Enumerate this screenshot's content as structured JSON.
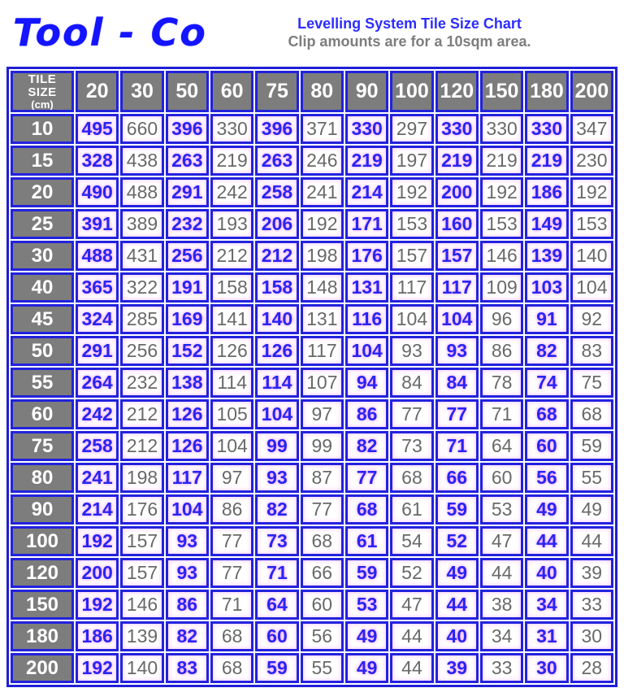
{
  "logo_text": "Tool - Co",
  "header": {
    "title": "Levelling System Tile Size Chart",
    "subtitle": "Clip amounts are for a 10sqm area."
  },
  "colors": {
    "accent_blue": "#2626f2",
    "grid_blue": "#2222dd",
    "value_gray": "#696969",
    "header_gray": "#7d7d7d",
    "halo_pink": "#ff6eff"
  },
  "chart_data": {
    "type": "table",
    "title": "Levelling System Tile Size Chart",
    "subtitle": "Clip amounts are for a 10sqm area.",
    "corner_label_line1": "TILE SIZE",
    "corner_label_line2": "(cm)",
    "columns": [
      {
        "label": "20",
        "highlight": true
      },
      {
        "label": "30",
        "highlight": false
      },
      {
        "label": "50",
        "highlight": true
      },
      {
        "label": "60",
        "highlight": false
      },
      {
        "label": "75",
        "highlight": true
      },
      {
        "label": "80",
        "highlight": false
      },
      {
        "label": "90",
        "highlight": true
      },
      {
        "label": "100",
        "highlight": false
      },
      {
        "label": "120",
        "highlight": true
      },
      {
        "label": "150",
        "highlight": false
      },
      {
        "label": "180",
        "highlight": true
      },
      {
        "label": "200",
        "highlight": false
      }
    ],
    "rows": [
      {
        "label": "10",
        "values": [
          495,
          660,
          396,
          330,
          396,
          371,
          330,
          297,
          330,
          330,
          330,
          347
        ]
      },
      {
        "label": "15",
        "values": [
          328,
          438,
          263,
          219,
          263,
          246,
          219,
          197,
          219,
          219,
          219,
          230
        ]
      },
      {
        "label": "20",
        "values": [
          490,
          488,
          291,
          242,
          258,
          241,
          214,
          192,
          200,
          192,
          186,
          192
        ]
      },
      {
        "label": "25",
        "values": [
          391,
          389,
          232,
          193,
          206,
          192,
          171,
          153,
          160,
          153,
          149,
          153
        ]
      },
      {
        "label": "30",
        "values": [
          488,
          431,
          256,
          212,
          212,
          198,
          176,
          157,
          157,
          146,
          139,
          140
        ]
      },
      {
        "label": "40",
        "values": [
          365,
          322,
          191,
          158,
          158,
          148,
          131,
          117,
          117,
          109,
          103,
          104
        ]
      },
      {
        "label": "45",
        "values": [
          324,
          285,
          169,
          141,
          140,
          131,
          116,
          104,
          104,
          96,
          91,
          92
        ]
      },
      {
        "label": "50",
        "values": [
          291,
          256,
          152,
          126,
          126,
          117,
          104,
          93,
          93,
          86,
          82,
          83
        ]
      },
      {
        "label": "55",
        "values": [
          264,
          232,
          138,
          114,
          114,
          107,
          94,
          84,
          84,
          78,
          74,
          75
        ]
      },
      {
        "label": "60",
        "values": [
          242,
          212,
          126,
          105,
          104,
          97,
          86,
          77,
          77,
          71,
          68,
          68
        ]
      },
      {
        "label": "75",
        "values": [
          258,
          212,
          126,
          104,
          99,
          99,
          82,
          73,
          71,
          64,
          60,
          59
        ]
      },
      {
        "label": "80",
        "values": [
          241,
          198,
          117,
          97,
          93,
          87,
          77,
          68,
          66,
          60,
          56,
          55
        ]
      },
      {
        "label": "90",
        "values": [
          214,
          176,
          104,
          86,
          82,
          77,
          68,
          61,
          59,
          53,
          49,
          49
        ]
      },
      {
        "label": "100",
        "values": [
          192,
          157,
          93,
          77,
          73,
          68,
          61,
          54,
          52,
          47,
          44,
          44
        ]
      },
      {
        "label": "120",
        "values": [
          200,
          157,
          93,
          77,
          71,
          66,
          59,
          52,
          49,
          44,
          40,
          39
        ]
      },
      {
        "label": "150",
        "values": [
          192,
          146,
          86,
          71,
          64,
          60,
          53,
          47,
          44,
          38,
          34,
          33
        ]
      },
      {
        "label": "180",
        "values": [
          186,
          139,
          82,
          68,
          60,
          56,
          49,
          44,
          40,
          34,
          31,
          30
        ]
      },
      {
        "label": "200",
        "values": [
          192,
          140,
          83,
          68,
          59,
          55,
          49,
          44,
          39,
          33,
          30,
          28
        ]
      }
    ]
  }
}
